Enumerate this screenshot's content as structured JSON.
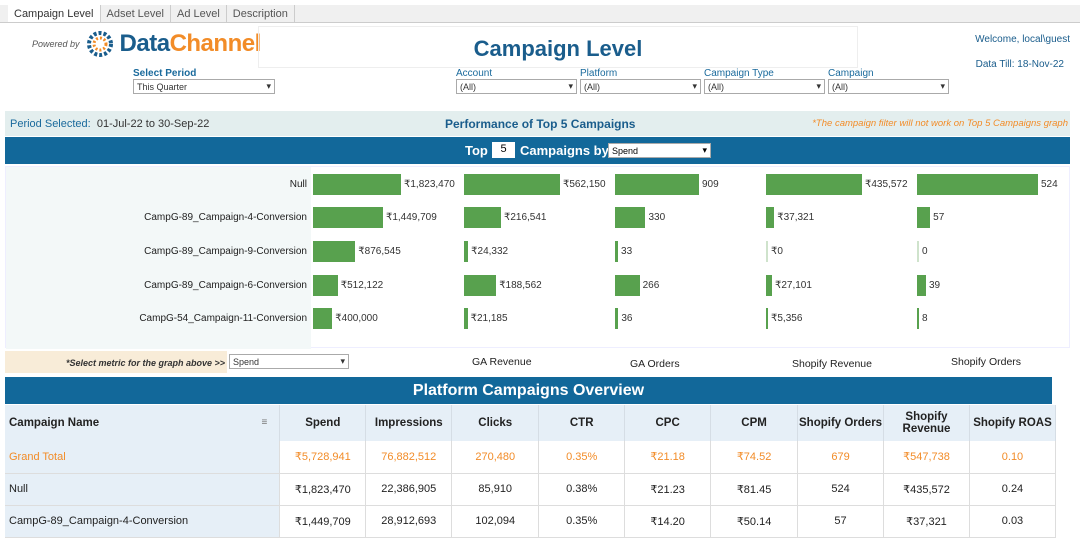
{
  "tabs": [
    "Campaign Level",
    "Adset Level",
    "Ad Level",
    "Description"
  ],
  "logo": {
    "powered_by": "Powered by",
    "brand_part1": "Data",
    "brand_part2": "Channel"
  },
  "header": {
    "title": "Campaign Level",
    "welcome": "Welcome, local\\guest",
    "data_till": "Data Till: 18-Nov-22"
  },
  "filters": [
    {
      "label": "Select Period",
      "value": "This Quarter"
    },
    {
      "label": "Account",
      "value": "(All)"
    },
    {
      "label": "Platform",
      "value": "(All)"
    },
    {
      "label": "Campaign Type",
      "value": "(All)"
    },
    {
      "label": "Campaign",
      "value": "(All)"
    }
  ],
  "period": {
    "label": "Period Selected:",
    "value": "01-Jul-22 to 30-Sep-22"
  },
  "performance_title": "Performance of Top 5 Campaigns",
  "note": "*The campaign filter will not work on Top 5 Campaigns graph",
  "top_selector": {
    "prefix": "Top",
    "count": "5",
    "middle": "Campaigns by",
    "metric": "Spend"
  },
  "colors": {
    "bar": "#58a14e",
    "header": "#12689a",
    "accent": "#f28c28"
  },
  "chart_data": {
    "type": "bar",
    "orientation": "horizontal",
    "categories": [
      "Null",
      "CampG-89_Campaign-4-Conversion",
      "CampG-89_Campaign-9-Conversion",
      "CampG-89_Campaign-6-Conversion",
      "CampG-54_Campaign-11-Conversion"
    ],
    "series": [
      {
        "name": "Spend",
        "values": [
          1823470,
          1449709,
          876545,
          512122,
          400000
        ],
        "labels": [
          "₹1,823,470",
          "₹1,449,709",
          "₹876,545",
          "₹512,122",
          "₹400,000"
        ]
      },
      {
        "name": "GA Revenue",
        "values": [
          562150,
          216541,
          24332,
          188562,
          21185
        ],
        "labels": [
          "₹562,150",
          "₹216,541",
          "₹24,332",
          "₹188,562",
          "₹21,185"
        ]
      },
      {
        "name": "GA Orders",
        "values": [
          909,
          330,
          33,
          266,
          36
        ],
        "labels": [
          "909",
          "330",
          "33",
          "266",
          "36"
        ]
      },
      {
        "name": "Shopify Revenue",
        "values": [
          435572,
          37321,
          0,
          27101,
          5356
        ],
        "labels": [
          "₹435,572",
          "₹37,321",
          "₹0",
          "₹27,101",
          "₹5,356"
        ]
      },
      {
        "name": "Shopify Orders",
        "values": [
          524,
          57,
          0,
          39,
          8
        ],
        "labels": [
          "524",
          "57",
          "0",
          "39",
          "8"
        ]
      }
    ]
  },
  "metric_select": {
    "label": "*Select metric for the graph above >>",
    "value": "Spend"
  },
  "overview": {
    "title": "Platform Campaigns Overview",
    "columns": [
      "Campaign Name",
      "Spend",
      "Impressions",
      "Clicks",
      "CTR",
      "CPC",
      "CPM",
      "Shopify Orders",
      "Shopify Revenue",
      "Shopify  ROAS"
    ],
    "rows": [
      [
        "Grand Total",
        "₹5,728,941",
        "76,882,512",
        "270,480",
        "0.35%",
        "₹21.18",
        "₹74.52",
        "679",
        "₹547,738",
        "0.10"
      ],
      [
        "Null",
        "₹1,823,470",
        "22,386,905",
        "85,910",
        "0.38%",
        "₹21.23",
        "₹81.45",
        "524",
        "₹435,572",
        "0.24"
      ],
      [
        "CampG-89_Campaign-4-Conversion",
        "₹1,449,709",
        "28,912,693",
        "102,094",
        "0.35%",
        "₹14.20",
        "₹50.14",
        "57",
        "₹37,321",
        "0.03"
      ]
    ]
  }
}
